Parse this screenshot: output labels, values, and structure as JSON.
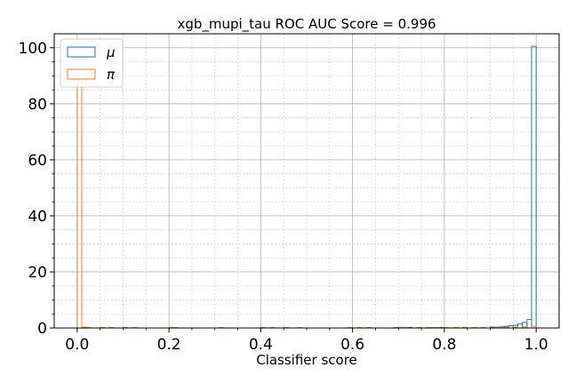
{
  "chart_data": {
    "type": "histogram",
    "title": "xgb_mupi_tau ROC AUC Score = 0.996",
    "xlabel": "Classifier score",
    "ylabel": "",
    "xlim": [
      -0.05,
      1.05
    ],
    "ylim": [
      0,
      105
    ],
    "xticks": [
      "0.0",
      "0.2",
      "0.4",
      "0.6",
      "0.8",
      "1.0"
    ],
    "xtick_values": [
      0.0,
      0.2,
      0.4,
      0.6,
      0.8,
      1.0
    ],
    "yticks": [
      "0",
      "20",
      "40",
      "60",
      "80",
      "100"
    ],
    "ytick_values": [
      0,
      20,
      40,
      60,
      80,
      100
    ],
    "grid": {
      "major": "solid",
      "minor": "dotted"
    },
    "legend_position": "top-left",
    "bin_width": 0.01,
    "series": [
      {
        "name": "μ",
        "color": "#1f77b4",
        "bins": [
          {
            "x": 0.7,
            "y": 0.2
          },
          {
            "x": 0.72,
            "y": 0.2
          },
          {
            "x": 0.79,
            "y": 0.2
          },
          {
            "x": 0.84,
            "y": 0.2
          },
          {
            "x": 0.88,
            "y": 0.2
          },
          {
            "x": 0.9,
            "y": 0.3
          },
          {
            "x": 0.91,
            "y": 0.3
          },
          {
            "x": 0.92,
            "y": 0.4
          },
          {
            "x": 0.93,
            "y": 0.6
          },
          {
            "x": 0.94,
            "y": 0.8
          },
          {
            "x": 0.95,
            "y": 1.0
          },
          {
            "x": 0.96,
            "y": 1.5
          },
          {
            "x": 0.97,
            "y": 2.0
          },
          {
            "x": 0.98,
            "y": 3.0
          },
          {
            "x": 0.99,
            "y": 100.5
          }
        ]
      },
      {
        "name": "π",
        "color": "#ff7f0e",
        "bins": [
          {
            "x": 0.0,
            "y": 88.0
          },
          {
            "x": 0.01,
            "y": 0.3
          },
          {
            "x": 0.02,
            "y": 0.2
          },
          {
            "x": 0.05,
            "y": 0.2
          },
          {
            "x": 0.07,
            "y": 0.2
          },
          {
            "x": 0.1,
            "y": 0.2
          },
          {
            "x": 0.12,
            "y": 0.2
          },
          {
            "x": 0.2,
            "y": 0.2
          },
          {
            "x": 0.21,
            "y": 0.2
          },
          {
            "x": 0.31,
            "y": 0.2
          },
          {
            "x": 0.4,
            "y": 0.2
          },
          {
            "x": 0.42,
            "y": 0.2
          },
          {
            "x": 0.45,
            "y": 0.2
          },
          {
            "x": 0.48,
            "y": 0.2
          },
          {
            "x": 0.59,
            "y": 0.2
          },
          {
            "x": 0.61,
            "y": 0.2
          },
          {
            "x": 0.63,
            "y": 0.2
          },
          {
            "x": 0.69,
            "y": 0.2
          },
          {
            "x": 0.7,
            "y": 0.2
          },
          {
            "x": 0.71,
            "y": 0.2
          },
          {
            "x": 0.74,
            "y": 0.2
          },
          {
            "x": 0.76,
            "y": 0.2
          },
          {
            "x": 0.77,
            "y": 0.2
          },
          {
            "x": 0.78,
            "y": 0.2
          },
          {
            "x": 0.8,
            "y": 0.2
          },
          {
            "x": 0.82,
            "y": 0.2
          },
          {
            "x": 0.84,
            "y": 0.2
          },
          {
            "x": 0.86,
            "y": 0.2
          },
          {
            "x": 0.88,
            "y": 0.2
          },
          {
            "x": 0.91,
            "y": 0.2
          },
          {
            "x": 0.93,
            "y": 0.3
          },
          {
            "x": 0.95,
            "y": 0.3
          },
          {
            "x": 0.97,
            "y": 0.4
          },
          {
            "x": 0.99,
            "y": 0.6
          }
        ]
      }
    ]
  }
}
